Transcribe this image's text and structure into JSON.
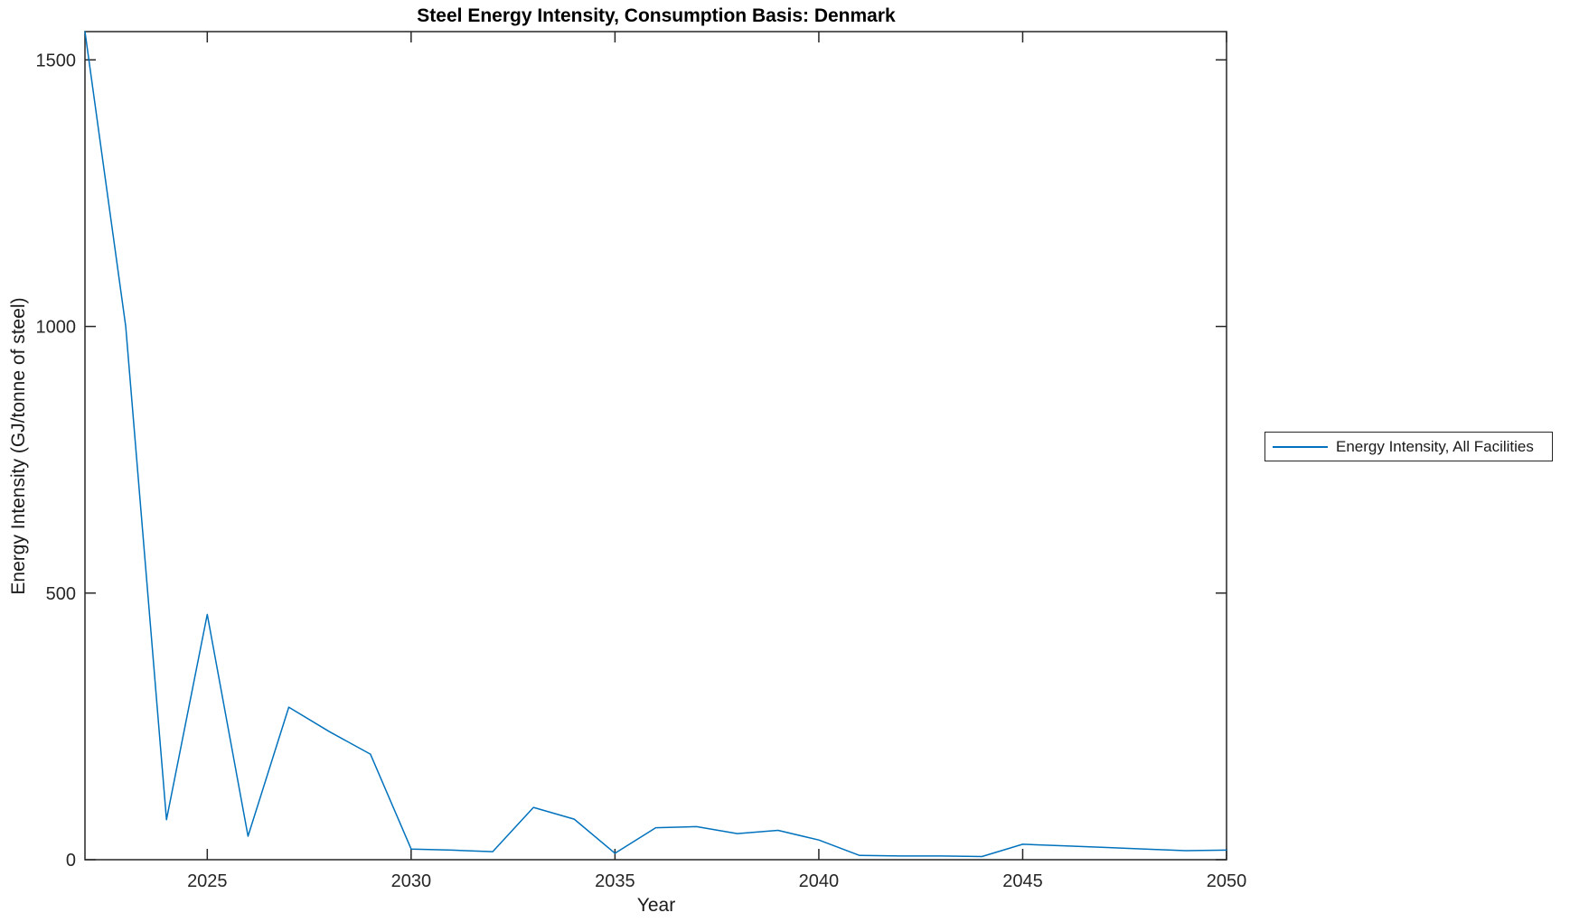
{
  "figure": {
    "title": "Steel Energy Intensity, Consumption Basis: Denmark",
    "xlabel": "Year",
    "ylabel": "Energy Intensity (GJ/tonne of steel)"
  },
  "legend": {
    "entries": [
      {
        "label": "Energy Intensity, All Facilities",
        "color": "#0072BD"
      }
    ]
  },
  "chart_data": {
    "type": "line",
    "title": "Steel Energy Intensity, Consumption Basis: Denmark",
    "xlabel": "Year",
    "ylabel": "Energy Intensity (GJ/tonne of steel)",
    "xlim": [
      2022,
      2050
    ],
    "ylim": [
      0,
      1553
    ],
    "xticks": [
      2025,
      2030,
      2035,
      2040,
      2045,
      2050
    ],
    "yticks": [
      0,
      500,
      1000,
      1500
    ],
    "grid": false,
    "legend_position": "right-outside",
    "axis_color": "#262626",
    "tick_label_color": "#262626",
    "background": "#ffffff",
    "series": [
      {
        "name": "Energy Intensity, All Facilities",
        "color": "#0072BD",
        "x": [
          2022,
          2023,
          2024,
          2025,
          2026,
          2027,
          2028,
          2029,
          2030,
          2031,
          2032,
          2033,
          2034,
          2035,
          2036,
          2037,
          2038,
          2039,
          2040,
          2041,
          2042,
          2043,
          2044,
          2045,
          2046,
          2047,
          2048,
          2049,
          2050
        ],
        "y": [
          1553,
          1000,
          75,
          460,
          44,
          286,
          240,
          198,
          20,
          18,
          15,
          98,
          76,
          12,
          60,
          62,
          49,
          55,
          37,
          8,
          7,
          7,
          6,
          29,
          26,
          23,
          20,
          17,
          18
        ]
      }
    ]
  }
}
